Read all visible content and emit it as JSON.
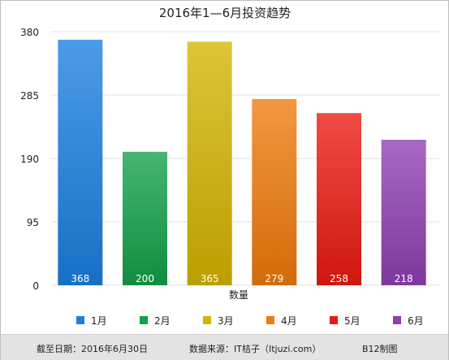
{
  "chart_data": {
    "type": "bar",
    "title": "2016年1—6月投资趋势",
    "xlabel": "数量",
    "ylabel": "",
    "ylim": [
      0,
      380
    ],
    "yticks": [
      0,
      95,
      190,
      285,
      380
    ],
    "grid": true,
    "legend_position": "bottom",
    "categories": [
      "1月",
      "2月",
      "3月",
      "4月",
      "5月",
      "6月"
    ],
    "values": [
      368,
      200,
      365,
      279,
      258,
      218
    ],
    "colors": [
      "#1a7fe0",
      "#12a049",
      "#d4b400",
      "#f07a0a",
      "#ea1a10",
      "#8e3fb2"
    ]
  },
  "footer": {
    "cutoff": "截至日期：2016年6月30日",
    "source": "数据来源：IT桔子（Itjuzi.com）",
    "credit": "B12制图"
  }
}
